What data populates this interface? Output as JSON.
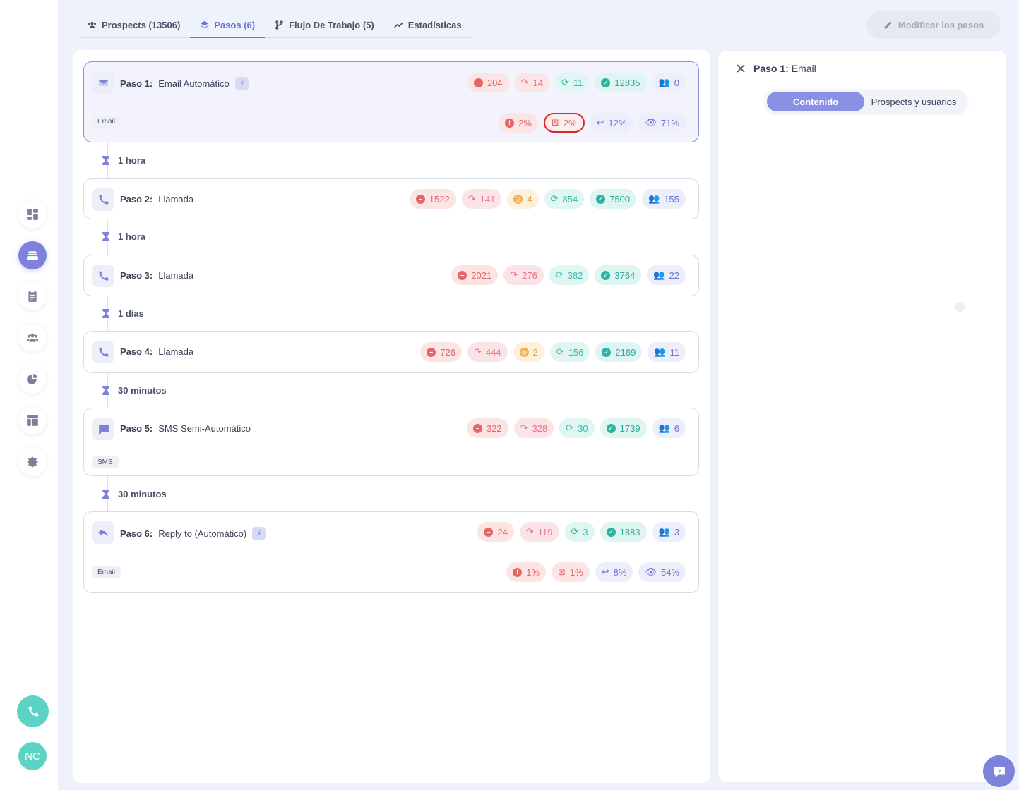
{
  "tabs": [
    {
      "label": "Prospects (13506)",
      "icon": "users-icon"
    },
    {
      "label": "Pasos (6)",
      "icon": "layers-icon"
    },
    {
      "label": "Flujo De Trabajo (5)",
      "icon": "branch-icon"
    },
    {
      "label": "Estadísticas",
      "icon": "trend-icon"
    }
  ],
  "modify_button": "Modificar los pasos",
  "user_initials": "NC",
  "steps": [
    {
      "label": "Paso 1:",
      "name": "Email Automático",
      "channel": "Email",
      "stats": {
        "bounced": "204",
        "skipped": "14",
        "in_progress": "11",
        "completed": "12835",
        "active": "0"
      },
      "rates": {
        "error": "2%",
        "spam": "2%",
        "replied": "12%",
        "opened": "71%"
      }
    },
    {
      "label": "Paso 2:",
      "name": "Llamada",
      "stats": {
        "bounced": "1522",
        "skipped": "141",
        "waiting": "4",
        "in_progress": "854",
        "completed": "7500",
        "active": "155"
      }
    },
    {
      "label": "Paso 3:",
      "name": "Llamada",
      "stats": {
        "bounced": "2021",
        "skipped": "276",
        "in_progress": "382",
        "completed": "3764",
        "active": "22"
      }
    },
    {
      "label": "Paso 4:",
      "name": "Llamada",
      "stats": {
        "bounced": "726",
        "skipped": "444",
        "waiting": "2",
        "in_progress": "156",
        "completed": "2169",
        "active": "11"
      }
    },
    {
      "label": "Paso 5:",
      "name": "SMS Semi-Automático",
      "channel": "SMS",
      "stats": {
        "bounced": "322",
        "skipped": "328",
        "in_progress": "30",
        "completed": "1739",
        "active": "6"
      }
    },
    {
      "label": "Paso 6:",
      "name": "Reply to (Automático)",
      "channel": "Email",
      "stats": {
        "bounced": "24",
        "skipped": "119",
        "in_progress": "3",
        "completed": "1883",
        "active": "3"
      },
      "rates": {
        "error": "1%",
        "spam": "1%",
        "replied": "8%",
        "opened": "54%"
      }
    }
  ],
  "delays": [
    "1 hora",
    "1 hora",
    "1 días",
    "30 minutos",
    "30 minutos"
  ],
  "detail_panel": {
    "label": "Paso 1:",
    "title": "Email",
    "tabs": [
      "Contenido",
      "Prospects y usuarios"
    ]
  },
  "colors": {
    "accent": "#7d83db",
    "teal": "#5dd3c3",
    "danger": "#e56666",
    "highlight_border": "#d7262e"
  }
}
